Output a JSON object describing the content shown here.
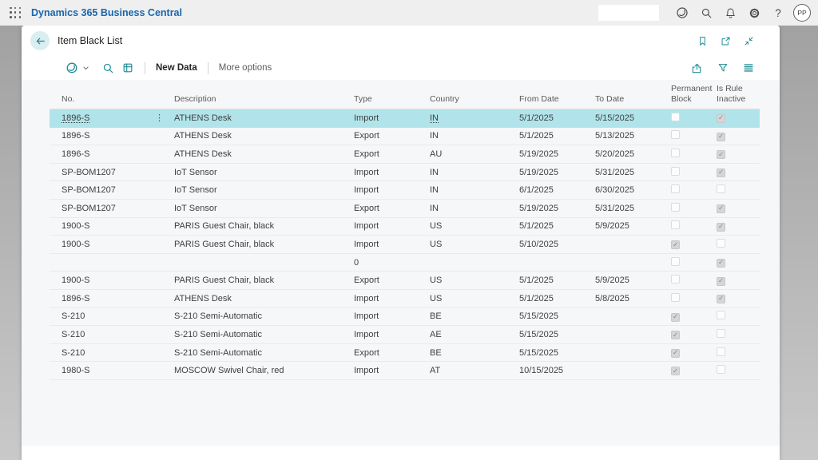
{
  "topbar": {
    "app_title": "Dynamics 365 Business Central",
    "search": {
      "value": "",
      "placeholder": ""
    },
    "help_glyph": "?",
    "avatar_initials": "PP",
    "icon_names": [
      "app-launcher-icon",
      "copilot-icon",
      "search-icon",
      "notifications-icon",
      "settings-icon",
      "help-icon"
    ]
  },
  "page_header": {
    "title": "Item Black List",
    "icon_names": [
      "back-icon",
      "bookmark-icon",
      "open-in-new-window-icon",
      "collapse-icon"
    ]
  },
  "action_bar": {
    "new_data_label": "New Data",
    "more_options_label": "More options",
    "left_icon_names": [
      "copilot-icon",
      "chevron-down-icon",
      "search-icon",
      "analyze-icon"
    ],
    "right_icon_names": [
      "share-icon",
      "filter-icon",
      "list-view-icon"
    ]
  },
  "table": {
    "row_menu_glyph": "⋮",
    "columns": [
      {
        "key": "no",
        "label": "No."
      },
      {
        "key": "description",
        "label": "Description"
      },
      {
        "key": "type",
        "label": "Type"
      },
      {
        "key": "country",
        "label": "Country"
      },
      {
        "key": "from-date",
        "label": "From Date"
      },
      {
        "key": "to-date",
        "label": "To Date"
      },
      {
        "key": "permanent-block",
        "label": "Permanent\nBlock"
      },
      {
        "key": "is-rule-inactive",
        "label": "Is Rule\nInactive"
      }
    ],
    "rows": [
      {
        "no": "1896-S",
        "description": "ATHENS Desk",
        "type": "Import",
        "country": "IN",
        "from_date": "5/1/2025",
        "to_date": "5/15/2025",
        "permanent_block": false,
        "is_rule_inactive": true,
        "selected": true
      },
      {
        "no": "1896-S",
        "description": "ATHENS Desk",
        "type": "Export",
        "country": "IN",
        "from_date": "5/1/2025",
        "to_date": "5/13/2025",
        "permanent_block": false,
        "is_rule_inactive": true,
        "selected": false
      },
      {
        "no": "1896-S",
        "description": "ATHENS Desk",
        "type": "Export",
        "country": "AU",
        "from_date": "5/19/2025",
        "to_date": "5/20/2025",
        "permanent_block": false,
        "is_rule_inactive": true,
        "selected": false
      },
      {
        "no": "SP-BOM1207",
        "description": "IoT Sensor",
        "type": "Import",
        "country": "IN",
        "from_date": "5/19/2025",
        "to_date": "5/31/2025",
        "permanent_block": false,
        "is_rule_inactive": true,
        "selected": false
      },
      {
        "no": "SP-BOM1207",
        "description": "IoT Sensor",
        "type": "Import",
        "country": "IN",
        "from_date": "6/1/2025",
        "to_date": "6/30/2025",
        "permanent_block": false,
        "is_rule_inactive": false,
        "selected": false
      },
      {
        "no": "SP-BOM1207",
        "description": "IoT Sensor",
        "type": "Export",
        "country": "IN",
        "from_date": "5/19/2025",
        "to_date": "5/31/2025",
        "permanent_block": false,
        "is_rule_inactive": true,
        "selected": false
      },
      {
        "no": "1900-S",
        "description": "PARIS Guest Chair, black",
        "type": "Import",
        "country": "US",
        "from_date": "5/1/2025",
        "to_date": "5/9/2025",
        "permanent_block": false,
        "is_rule_inactive": true,
        "selected": false
      },
      {
        "no": "1900-S",
        "description": "PARIS Guest Chair, black",
        "type": "Import",
        "country": "US",
        "from_date": "5/10/2025",
        "to_date": "",
        "permanent_block": true,
        "is_rule_inactive": false,
        "selected": false
      },
      {
        "no": "",
        "description": "",
        "type": "0",
        "country": "",
        "from_date": "",
        "to_date": "",
        "permanent_block": false,
        "is_rule_inactive": true,
        "selected": false
      },
      {
        "no": "1900-S",
        "description": "PARIS Guest Chair, black",
        "type": "Export",
        "country": "US",
        "from_date": "5/1/2025",
        "to_date": "5/9/2025",
        "permanent_block": false,
        "is_rule_inactive": true,
        "selected": false
      },
      {
        "no": "1896-S",
        "description": "ATHENS Desk",
        "type": "Import",
        "country": "US",
        "from_date": "5/1/2025",
        "to_date": "5/8/2025",
        "permanent_block": false,
        "is_rule_inactive": true,
        "selected": false
      },
      {
        "no": "S-210",
        "description": "S-210 Semi-Automatic",
        "type": "Import",
        "country": "BE",
        "from_date": "5/15/2025",
        "to_date": "",
        "permanent_block": true,
        "is_rule_inactive": false,
        "selected": false
      },
      {
        "no": "S-210",
        "description": "S-210 Semi-Automatic",
        "type": "Import",
        "country": "AE",
        "from_date": "5/15/2025",
        "to_date": "",
        "permanent_block": true,
        "is_rule_inactive": false,
        "selected": false
      },
      {
        "no": "S-210",
        "description": "S-210 Semi-Automatic",
        "type": "Export",
        "country": "BE",
        "from_date": "5/15/2025",
        "to_date": "",
        "permanent_block": true,
        "is_rule_inactive": false,
        "selected": false
      },
      {
        "no": "1980-S",
        "description": "MOSCOW Swivel Chair, red",
        "type": "Import",
        "country": "AT",
        "from_date": "10/15/2025",
        "to_date": "",
        "permanent_block": true,
        "is_rule_inactive": false,
        "selected": false
      }
    ]
  },
  "colors": {
    "accent_teal": "#1f8a93",
    "selected_row": "#b0e4ea",
    "app_title_blue": "#1a66ac",
    "topbar_bg": "#efefef",
    "table_bg": "#f6f7f8"
  }
}
